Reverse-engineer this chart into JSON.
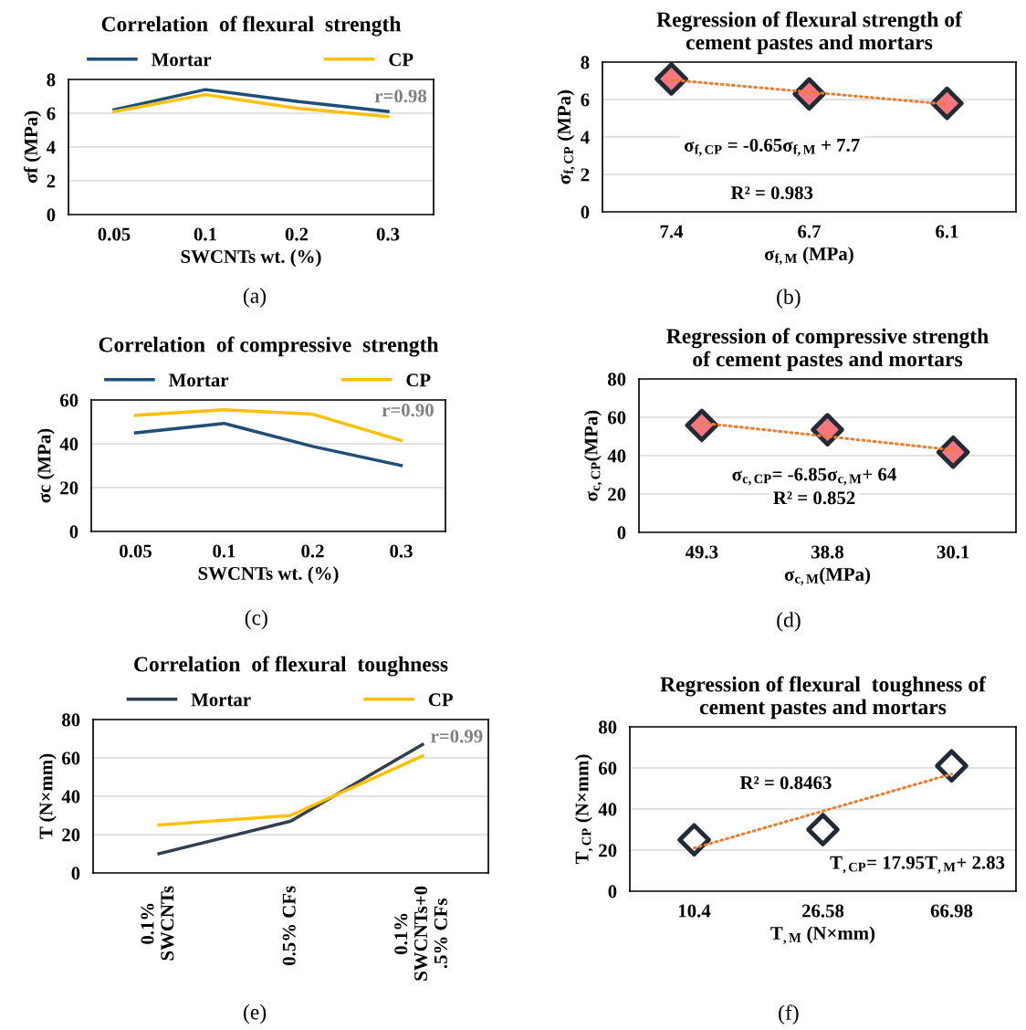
{
  "chart_data": [
    {
      "type": "line",
      "title": "Correlation  of flexural  strength",
      "xlabel": "SWCNTs wt. (%)",
      "ylabel": "σf (MPa)",
      "categories": [
        "0.05",
        "0.1",
        "0.2",
        "0.3"
      ],
      "ylim": [
        0,
        8
      ],
      "yticks": [
        0,
        2,
        4,
        6,
        8
      ],
      "grid": "y",
      "legend": "top",
      "marker": "none",
      "line_style": "solid",
      "series": [
        {
          "name": "Mortar",
          "color": "#1f4e79",
          "values": [
            6.2,
            7.4,
            6.7,
            6.1
          ]
        },
        {
          "name": "CP",
          "color": "#ffc000",
          "values": [
            6.1,
            7.1,
            6.3,
            5.8
          ]
        }
      ],
      "annotations": [
        "r=0.98",
        "(a)"
      ]
    },
    {
      "type": "scatter",
      "title": "Regression of flexural strength of\ncement pastes and mortars",
      "xlabel": "σ$_{f,M}$ (MPa)",
      "ylabel": "σ$_{f,CP}$ (MPa)",
      "categories": [
        "7.4",
        "6.7",
        "6.1"
      ],
      "ylim": [
        0,
        8
      ],
      "yticks": [
        0,
        2,
        4,
        6,
        8
      ],
      "grid": "y",
      "series": [
        {
          "color": "#f4777f",
          "marker": "diamond",
          "values": [
            7.1,
            6.3,
            5.8
          ]
        },
        {
          "type": "line",
          "line_style": "dotted",
          "color": "#ed7d31",
          "values": [
            7.05,
            6.4,
            5.75
          ]
        }
      ],
      "annotations": [
        "σ$_{f,CP}$ = -0.65σ$_{f,M}$ + 7.7",
        "R² = 0.983",
        "(b)"
      ]
    },
    {
      "type": "line",
      "title": "Correlation  of compressive  strength",
      "xlabel": "SWCNTs wt. (%)",
      "ylabel": "σc (MPa)",
      "categories": [
        "0.05",
        "0.1",
        "0.2",
        "0.3"
      ],
      "ylim": [
        0,
        60
      ],
      "yticks": [
        0,
        20,
        40,
        60
      ],
      "grid": "y",
      "legend": "top",
      "marker": "none",
      "line_style": "solid",
      "series": [
        {
          "name": "Mortar",
          "color": "#1f4e79",
          "values": [
            45,
            49.3,
            38.8,
            30.1
          ]
        },
        {
          "name": "CP",
          "color": "#ffc000",
          "values": [
            53,
            55.5,
            53.5,
            41.5
          ]
        }
      ],
      "annotations": [
        "r=0.90",
        "(c)"
      ]
    },
    {
      "type": "scatter",
      "title": "Regression of compressive strength\nof cement pastes and mortars",
      "xlabel": "σ$_{c,M}$(MPa)",
      "ylabel": "σ$_{c,CP}$(MPa)",
      "categories": [
        "49.3",
        "38.8",
        "30.1"
      ],
      "ylim": [
        0,
        80
      ],
      "yticks": [
        0,
        20,
        40,
        60,
        80
      ],
      "grid": "y",
      "series": [
        {
          "color": "#f4777f",
          "marker": "diamond",
          "values": [
            55.8,
            53.5,
            41.8
          ]
        },
        {
          "type": "line",
          "line_style": "dotted",
          "color": "#ed7d31",
          "values": [
            57,
            50,
            43
          ]
        }
      ],
      "annotations": [
        "σ$_{c,CP}$= -6.85σ$_{c,M}$+ 64",
        "R² = 0.852",
        "(d)"
      ]
    },
    {
      "type": "line",
      "title": "Correlation  of flexural  toughness",
      "ylabel": "T (N×mm)",
      "categories": [
        "0.1%\nSWCNTs",
        "0.5% CFs",
        "0.1%\nSWCNTs+0\n.5% CFs"
      ],
      "ylim": [
        0,
        80
      ],
      "yticks": [
        0,
        20,
        40,
        60,
        80
      ],
      "grid": "y",
      "legend": "top",
      "marker": "none",
      "line_style": "solid",
      "series": [
        {
          "name": "Mortar",
          "color": "#323f4f",
          "values": [
            10,
            27,
            67
          ]
        },
        {
          "name": "CP",
          "color": "#ffc000",
          "values": [
            25,
            30,
            61
          ]
        }
      ],
      "annotations": [
        "r=0.99",
        "(e)"
      ]
    },
    {
      "type": "scatter",
      "title": "Regression of flexural  toughness of\ncement pastes and mortars",
      "xlabel": "T$_{,M}$ (N×mm)",
      "ylabel": "T$_{,CP}$ (N×mm)",
      "categories": [
        "10.4",
        "26.58",
        "66.98"
      ],
      "ylim": [
        0,
        80
      ],
      "yticks": [
        0,
        20,
        40,
        60,
        80
      ],
      "grid": "y",
      "series": [
        {
          "color": "#ffffff",
          "marker": "diamond",
          "values": [
            25,
            30,
            61
          ]
        },
        {
          "type": "line",
          "line_style": "dotted",
          "color": "#ed7d31",
          "values": [
            21,
            39,
            57
          ]
        }
      ],
      "annotations": [
        "R² = 0.8463",
        "T$_{,CP}$= 17.95T$_{,M}$+ 2.83",
        "(f)"
      ]
    }
  ]
}
